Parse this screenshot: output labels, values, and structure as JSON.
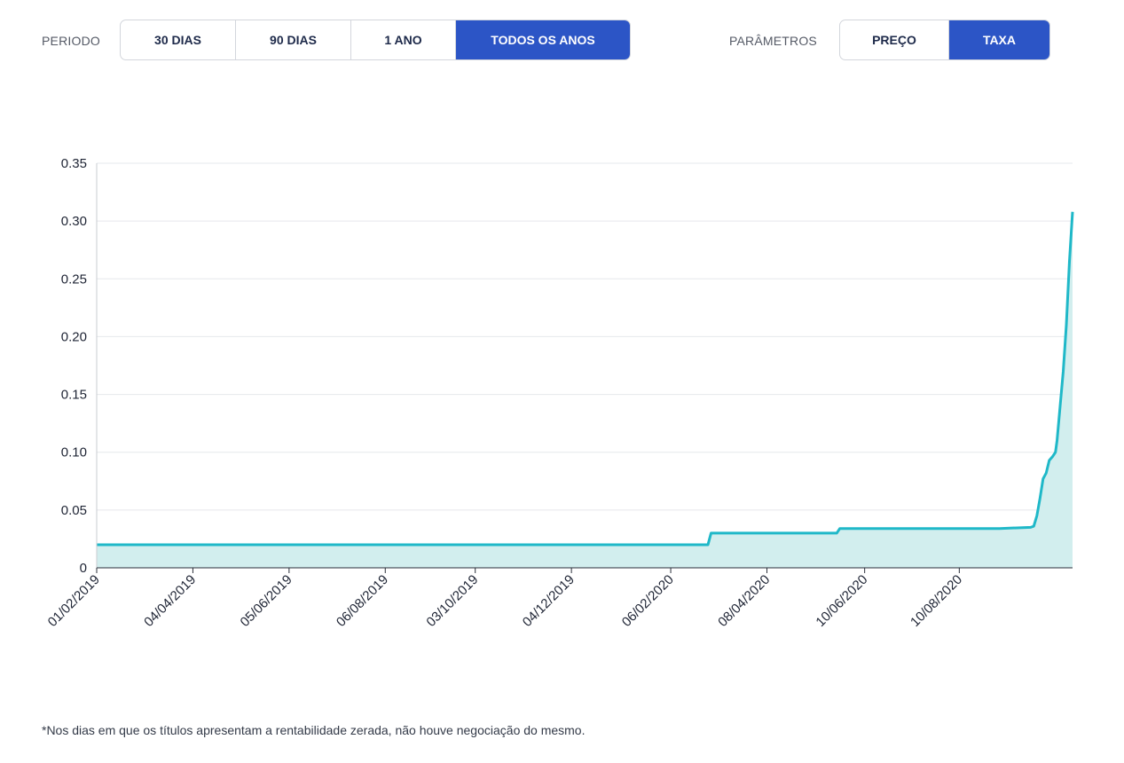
{
  "controls": {
    "periodo_label": "PERIODO",
    "periodo_buttons": [
      "30 DIAS",
      "90 DIAS",
      "1 ANO",
      "TODOS OS ANOS"
    ],
    "periodo_active": "TODOS OS ANOS",
    "parametros_label": "PARÂMETROS",
    "parametros_buttons": [
      "PREÇO",
      "TAXA"
    ],
    "parametros_active": "TAXA",
    "active_color": "#2c55c6"
  },
  "chart_data": {
    "type": "area",
    "title": "",
    "xlabel": "",
    "ylabel": "",
    "ylim": [
      0,
      0.35
    ],
    "yticks": [
      0,
      0.05,
      0.1,
      0.15,
      0.2,
      0.25,
      0.3,
      0.35
    ],
    "ytick_labels": [
      "0",
      "0.05",
      "0.10",
      "0.15",
      "0.20",
      "0.25",
      "0.30",
      "0.35"
    ],
    "xlim": [
      "2019-02-01",
      "2020-10-22"
    ],
    "xtick_labels": [
      "01/02/2019",
      "04/04/2019",
      "05/06/2019",
      "06/08/2019",
      "03/10/2019",
      "04/12/2019",
      "06/02/2020",
      "08/04/2020",
      "10/06/2020",
      "10/08/2020"
    ],
    "xtick_dates": [
      "2019-02-01",
      "2019-04-04",
      "2019-06-05",
      "2019-08-06",
      "2019-10-03",
      "2019-12-04",
      "2020-02-06",
      "2020-04-08",
      "2020-06-10",
      "2020-08-10"
    ],
    "grid": true,
    "line_color": "#1fb8c8",
    "fill_color": "#d2eeee",
    "series": [
      {
        "name": "",
        "points": [
          [
            "2019-02-01",
            0.02
          ],
          [
            "2020-03-01",
            0.02
          ],
          [
            "2020-03-03",
            0.03
          ],
          [
            "2020-05-23",
            0.03
          ],
          [
            "2020-05-25",
            0.034
          ],
          [
            "2020-09-05",
            0.034
          ],
          [
            "2020-09-25",
            0.035
          ],
          [
            "2020-09-27",
            0.036
          ],
          [
            "2020-09-29",
            0.045
          ],
          [
            "2020-10-01",
            0.06
          ],
          [
            "2020-10-03",
            0.077
          ],
          [
            "2020-10-05",
            0.082
          ],
          [
            "2020-10-07",
            0.093
          ],
          [
            "2020-10-09",
            0.096
          ],
          [
            "2020-10-11",
            0.1
          ],
          [
            "2020-10-12",
            0.11
          ],
          [
            "2020-10-14",
            0.14
          ],
          [
            "2020-10-16",
            0.17
          ],
          [
            "2020-10-18",
            0.21
          ],
          [
            "2020-10-20",
            0.265
          ],
          [
            "2020-10-22",
            0.308
          ]
        ]
      }
    ]
  },
  "footnote": "*Nos dias em que os títulos apresentam a rentabilidade zerada, não houve negociação do mesmo."
}
